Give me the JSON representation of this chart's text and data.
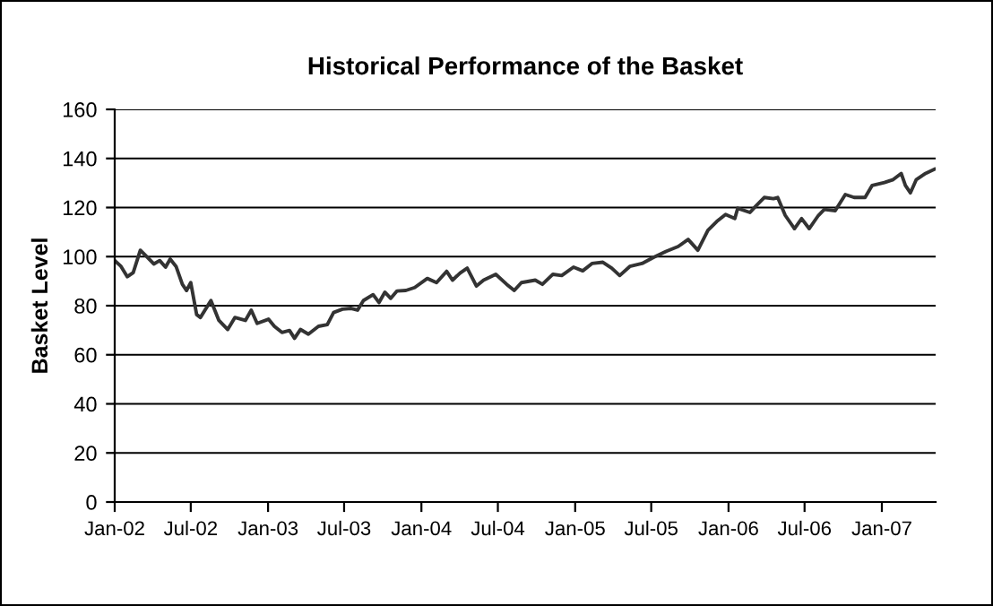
{
  "chart_data": {
    "type": "line",
    "title": "Historical Performance of the Basket",
    "ylabel": "Basket Level",
    "x": [
      "2002-01-01",
      "2002-01-16",
      "2002-01-31",
      "2002-02-14",
      "2002-03-03",
      "2002-03-20",
      "2002-04-04",
      "2002-04-18",
      "2002-05-02",
      "2002-05-13",
      "2002-05-27",
      "2002-06-11",
      "2002-06-21",
      "2002-07-01",
      "2002-07-15",
      "2002-07-24",
      "2002-08-18",
      "2002-09-06",
      "2002-09-27",
      "2002-10-14",
      "2002-11-08",
      "2002-11-22",
      "2002-12-06",
      "2003-01-02",
      "2003-01-16",
      "2003-02-03",
      "2003-02-21",
      "2003-03-05",
      "2003-03-19",
      "2003-04-07",
      "2003-05-01",
      "2003-05-22",
      "2003-06-06",
      "2003-06-27",
      "2003-07-18",
      "2003-08-02",
      "2003-08-16",
      "2003-09-08",
      "2003-09-22",
      "2003-10-06",
      "2003-10-20",
      "2003-11-04",
      "2003-11-25",
      "2003-12-16",
      "2004-01-15",
      "2004-02-06",
      "2004-03-01",
      "2004-03-15",
      "2004-04-02",
      "2004-04-19",
      "2004-05-11",
      "2004-05-28",
      "2004-06-26",
      "2004-07-22",
      "2004-08-09",
      "2004-08-26",
      "2004-09-28",
      "2004-10-15",
      "2004-11-09",
      "2004-11-30",
      "2004-12-28",
      "2005-01-19",
      "2005-02-10",
      "2005-03-08",
      "2005-03-29",
      "2005-04-17",
      "2005-05-11",
      "2005-06-09",
      "2005-07-07",
      "2005-08-05",
      "2005-09-03",
      "2005-09-27",
      "2005-10-20",
      "2005-11-13",
      "2005-12-04",
      "2005-12-25",
      "2006-01-16",
      "2006-01-23",
      "2006-02-21",
      "2006-03-06",
      "2006-03-27",
      "2006-04-18",
      "2006-04-28",
      "2006-05-16",
      "2006-06-07",
      "2006-06-24",
      "2006-07-12",
      "2006-08-03",
      "2006-08-17",
      "2006-09-12",
      "2006-10-06",
      "2006-10-27",
      "2006-11-22",
      "2006-12-09",
      "2007-01-07",
      "2007-01-28",
      "2007-02-16",
      "2007-02-26",
      "2007-03-10",
      "2007-03-24",
      "2007-04-15",
      "2007-05-06"
    ],
    "series": [
      {
        "color": "#333333",
        "values": [
          98.4,
          96,
          91.8,
          93.5,
          102.6,
          99.7,
          97,
          98.4,
          95.7,
          99,
          96,
          88.7,
          86.2,
          89.4,
          76.4,
          75.2,
          82.1,
          74,
          70.3,
          75.2,
          74,
          78.2,
          72.8,
          74.5,
          71.6,
          69.1,
          69.9,
          66.7,
          70.3,
          68.4,
          71.6,
          72.3,
          77.2,
          78.6,
          78.9,
          78.2,
          82.1,
          84.5,
          81.3,
          85.5,
          83,
          86,
          86.2,
          87.4,
          91.1,
          89.4,
          94,
          90.4,
          93.3,
          95.3,
          88,
          90.4,
          92.8,
          88.7,
          86.2,
          89.4,
          90.4,
          88.7,
          92.8,
          92.3,
          95.7,
          94.2,
          97.2,
          97.7,
          95.3,
          92.3,
          96,
          97.2,
          99.7,
          102.1,
          104.1,
          107,
          102.6,
          110.7,
          114.3,
          117.2,
          115.5,
          119.7,
          118,
          120.4,
          124.1,
          123.6,
          124.1,
          116.8,
          111.4,
          115.5,
          111.4,
          116.8,
          119.2,
          118.7,
          125.3,
          124.1,
          124.1,
          129,
          130.2,
          131.4,
          133.9,
          129,
          126,
          131.4,
          133.9,
          135.6
        ]
      }
    ],
    "xlim": [
      "2002-01-01",
      "2007-05-09"
    ],
    "xticks": [
      {
        "value": "2002-01-01",
        "label": "Jan-02"
      },
      {
        "value": "2002-07-01",
        "label": "Jul-02"
      },
      {
        "value": "2003-01-01",
        "label": "Jan-03"
      },
      {
        "value": "2003-07-01",
        "label": "Jul-03"
      },
      {
        "value": "2004-01-01",
        "label": "Jan-04"
      },
      {
        "value": "2004-07-01",
        "label": "Jul-04"
      },
      {
        "value": "2005-01-01",
        "label": "Jan-05"
      },
      {
        "value": "2005-07-01",
        "label": "Jul-05"
      },
      {
        "value": "2006-01-01",
        "label": "Jan-06"
      },
      {
        "value": "2006-07-01",
        "label": "Jul-06"
      },
      {
        "value": "2007-01-01",
        "label": "Jan-07"
      }
    ],
    "ylim": [
      0,
      160
    ],
    "yticks": [
      0,
      20,
      40,
      60,
      80,
      100,
      120,
      140,
      160
    ],
    "grid": "y",
    "marker": "none",
    "line_style": "solid"
  }
}
